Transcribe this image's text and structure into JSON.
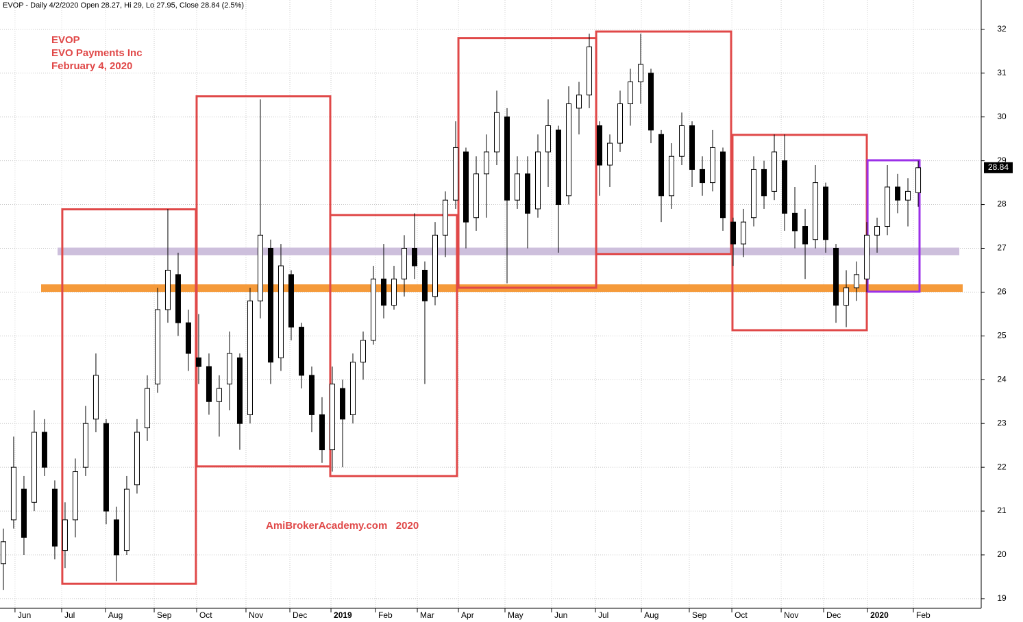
{
  "chart_data": {
    "type": "candlestick",
    "header": "EVOP - Daily 4/2/2020 Open 28.27, Hi 29, Lo 27.95, Close 28.84 (2.5%)",
    "annotations": [
      "EVOP",
      "EVO Payments Inc",
      "February 4, 2020"
    ],
    "watermark": "AmiBrokerAcademy.com   2020",
    "ohlc": [
      [
        19.8,
        20.6,
        19.2,
        20.3
      ],
      [
        20.8,
        22.7,
        20.6,
        22.0
      ],
      [
        21.5,
        21.8,
        20.0,
        20.4
      ],
      [
        21.2,
        23.3,
        21.0,
        22.8
      ],
      [
        22.8,
        23.1,
        21.8,
        22.0
      ],
      [
        21.5,
        21.7,
        19.9,
        20.2
      ],
      [
        20.1,
        21.2,
        19.7,
        20.8
      ],
      [
        20.8,
        22.2,
        20.4,
        21.9
      ],
      [
        22.0,
        23.4,
        21.8,
        23.0
      ],
      [
        23.1,
        24.6,
        22.8,
        24.1
      ],
      [
        23.0,
        23.1,
        20.7,
        21.0
      ],
      [
        20.8,
        21.1,
        19.4,
        20.0
      ],
      [
        20.1,
        21.8,
        20.0,
        21.5
      ],
      [
        21.6,
        23.1,
        21.4,
        22.8
      ],
      [
        22.9,
        24.1,
        22.6,
        23.8
      ],
      [
        23.9,
        26.1,
        23.7,
        25.6
      ],
      [
        25.6,
        27.9,
        25.3,
        26.5
      ],
      [
        26.4,
        26.9,
        25.0,
        25.3
      ],
      [
        25.3,
        25.6,
        24.2,
        24.6
      ],
      [
        24.5,
        25.5,
        23.9,
        24.3
      ],
      [
        24.3,
        24.6,
        23.2,
        23.5
      ],
      [
        23.5,
        24.1,
        22.7,
        23.8
      ],
      [
        23.9,
        25.1,
        23.3,
        24.6
      ],
      [
        24.5,
        24.6,
        22.4,
        23.0
      ],
      [
        23.2,
        26.1,
        23.0,
        25.8
      ],
      [
        25.8,
        30.4,
        25.4,
        27.3
      ],
      [
        27.0,
        27.2,
        23.9,
        24.4
      ],
      [
        24.5,
        27.1,
        24.2,
        26.6
      ],
      [
        26.4,
        26.5,
        24.9,
        25.2
      ],
      [
        25.2,
        25.3,
        23.8,
        24.1
      ],
      [
        24.1,
        24.3,
        22.8,
        23.2
      ],
      [
        23.2,
        23.6,
        22.1,
        22.4
      ],
      [
        22.4,
        24.3,
        21.9,
        23.9
      ],
      [
        23.8,
        24.0,
        22.0,
        23.1
      ],
      [
        23.2,
        24.6,
        23.0,
        24.4
      ],
      [
        24.4,
        25.1,
        24.0,
        24.9
      ],
      [
        24.9,
        26.6,
        24.8,
        26.3
      ],
      [
        26.3,
        27.1,
        25.4,
        25.7
      ],
      [
        25.7,
        26.6,
        25.6,
        26.3
      ],
      [
        26.3,
        27.3,
        25.9,
        27.0
      ],
      [
        27.0,
        27.8,
        26.3,
        26.6
      ],
      [
        26.5,
        26.7,
        23.9,
        25.8
      ],
      [
        25.9,
        27.6,
        25.7,
        27.3
      ],
      [
        27.3,
        28.3,
        26.8,
        28.1
      ],
      [
        28.1,
        29.9,
        27.9,
        29.3
      ],
      [
        29.2,
        29.3,
        27.0,
        27.6
      ],
      [
        27.7,
        29.1,
        27.4,
        28.7
      ],
      [
        28.7,
        29.6,
        27.7,
        29.2
      ],
      [
        29.2,
        30.6,
        28.9,
        30.1
      ],
      [
        30.0,
        30.2,
        26.2,
        28.1
      ],
      [
        28.1,
        29.1,
        27.9,
        28.7
      ],
      [
        28.7,
        29.1,
        27.0,
        27.8
      ],
      [
        27.9,
        29.6,
        27.7,
        29.2
      ],
      [
        29.2,
        30.4,
        28.4,
        29.8
      ],
      [
        29.7,
        29.8,
        26.9,
        28.0
      ],
      [
        28.2,
        30.7,
        28.0,
        30.3
      ],
      [
        30.2,
        30.8,
        29.6,
        30.5
      ],
      [
        30.5,
        31.9,
        30.2,
        31.6
      ],
      [
        29.8,
        29.9,
        28.2,
        28.9
      ],
      [
        28.9,
        29.6,
        28.4,
        29.4
      ],
      [
        29.4,
        30.6,
        29.2,
        30.3
      ],
      [
        30.3,
        31.1,
        29.8,
        30.8
      ],
      [
        30.8,
        31.9,
        30.3,
        31.2
      ],
      [
        31.0,
        31.1,
        29.4,
        29.7
      ],
      [
        29.6,
        29.7,
        27.6,
        28.2
      ],
      [
        28.2,
        29.4,
        27.9,
        29.1
      ],
      [
        29.1,
        30.1,
        28.9,
        29.8
      ],
      [
        29.8,
        29.9,
        28.4,
        28.8
      ],
      [
        28.8,
        29.1,
        28.2,
        28.5
      ],
      [
        28.5,
        29.7,
        28.3,
        29.3
      ],
      [
        29.2,
        29.3,
        27.4,
        27.7
      ],
      [
        27.6,
        27.7,
        26.6,
        27.1
      ],
      [
        27.1,
        27.9,
        26.8,
        27.6
      ],
      [
        27.7,
        29.1,
        27.5,
        28.8
      ],
      [
        28.8,
        29.0,
        27.9,
        28.2
      ],
      [
        28.3,
        29.6,
        28.1,
        29.2
      ],
      [
        29.0,
        29.6,
        27.4,
        27.8
      ],
      [
        27.8,
        28.4,
        27.0,
        27.4
      ],
      [
        27.5,
        27.9,
        26.3,
        27.1
      ],
      [
        27.2,
        28.9,
        27.0,
        28.5
      ],
      [
        28.4,
        28.5,
        26.9,
        27.2
      ],
      [
        27.0,
        27.1,
        25.3,
        25.7
      ],
      [
        25.7,
        26.5,
        25.2,
        26.1
      ],
      [
        26.1,
        26.7,
        25.8,
        26.4
      ],
      [
        26.3,
        27.6,
        26.0,
        27.3
      ],
      [
        27.3,
        27.7,
        26.9,
        27.5
      ],
      [
        27.5,
        28.9,
        27.3,
        28.4
      ],
      [
        28.4,
        28.7,
        27.8,
        28.1
      ],
      [
        28.1,
        28.6,
        27.5,
        28.3
      ],
      [
        28.27,
        29,
        27.95,
        28.84
      ]
    ],
    "xlim": [
      -0.33,
      95.13
    ],
    "xticks": [
      {
        "value": 1.13,
        "label": "Jun"
      },
      {
        "value": 5.67,
        "label": "Jul"
      },
      {
        "value": 9.93,
        "label": "Aug"
      },
      {
        "value": 14.67,
        "label": "Sep"
      },
      {
        "value": 18.8,
        "label": "Oct"
      },
      {
        "value": 23.6,
        "label": "Nov"
      },
      {
        "value": 27.87,
        "label": "Dec"
      },
      {
        "value": 31.87,
        "label": "2019"
      },
      {
        "value": 36.2,
        "label": "Feb"
      },
      {
        "value": 40.27,
        "label": "Mar"
      },
      {
        "value": 44.27,
        "label": "Apr"
      },
      {
        "value": 48.8,
        "label": "May"
      },
      {
        "value": 53.33,
        "label": "Jun"
      },
      {
        "value": 57.6,
        "label": "Jul"
      },
      {
        "value": 62.07,
        "label": "Aug"
      },
      {
        "value": 66.73,
        "label": "Sep"
      },
      {
        "value": 70.87,
        "label": "Oct"
      },
      {
        "value": 75.67,
        "label": "Nov"
      },
      {
        "value": 79.8,
        "label": "Dec"
      },
      {
        "value": 84.07,
        "label": "2020"
      },
      {
        "value": 88.53,
        "label": "Feb"
      }
    ],
    "ylim": [
      18.78,
      32.67
    ],
    "yticks": [
      19,
      20,
      21,
      22,
      23,
      24,
      25,
      26,
      27,
      28,
      29,
      30,
      31,
      32
    ],
    "grid": true,
    "boxes": [
      {
        "x": [
          5.73,
          18.73
        ],
        "y": [
          19.34,
          27.89
        ],
        "color": "#e04848"
      },
      {
        "x": [
          18.8,
          31.8
        ],
        "y": [
          22.02,
          30.47
        ],
        "color": "#e04848"
      },
      {
        "x": [
          31.8,
          44.13
        ],
        "y": [
          21.8,
          27.76
        ],
        "color": "#e04848"
      },
      {
        "x": [
          44.27,
          57.67
        ],
        "y": [
          26.1,
          31.8
        ],
        "color": "#e04848"
      },
      {
        "x": [
          57.67,
          70.8
        ],
        "y": [
          26.87,
          31.95
        ],
        "color": "#e04848"
      },
      {
        "x": [
          70.93,
          84.0
        ],
        "y": [
          25.13,
          29.59
        ],
        "color": "#e04848"
      },
      {
        "x": [
          84.07,
          89.13
        ],
        "y": [
          26.01,
          29.01
        ],
        "color": "#9b30e8"
      }
    ],
    "bands": [
      {
        "x": [
          5.27,
          93.0
        ],
        "y": 26.93,
        "color": "#cdbfdc"
      },
      {
        "x": [
          3.67,
          93.33
        ],
        "y": 26.09,
        "color": "#f59a3a"
      }
    ]
  }
}
